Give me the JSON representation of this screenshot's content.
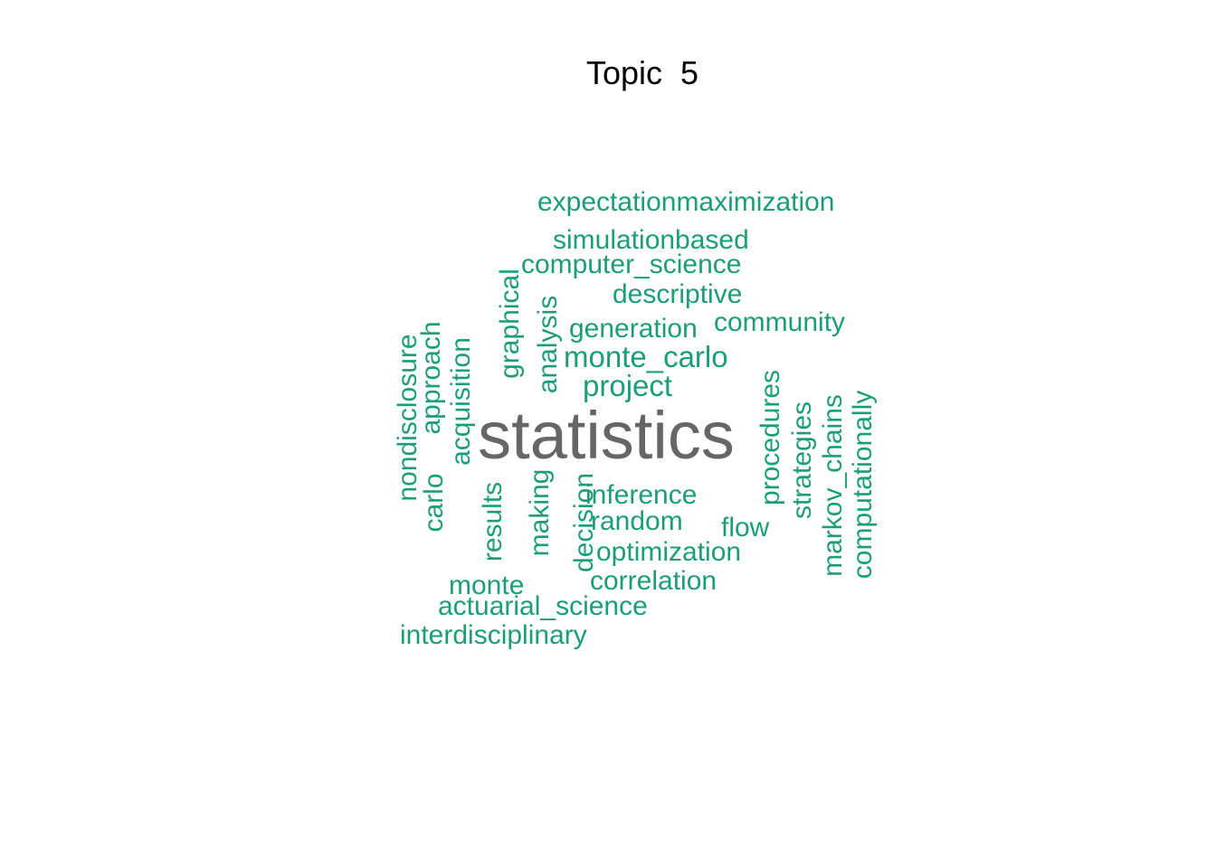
{
  "chart_data": {
    "type": "wordcloud",
    "title": "Topic  5",
    "colors": {
      "primary": "#666666",
      "secondary": "#1b9e77"
    },
    "words": [
      {
        "text": "statistics",
        "weight": 1.0,
        "color": "#666666",
        "rotated": false
      },
      {
        "text": "expectationmaximization",
        "weight": 0.42,
        "color": "#1b9e77",
        "rotated": false
      },
      {
        "text": "simulationbased",
        "weight": 0.42,
        "color": "#1b9e77",
        "rotated": false
      },
      {
        "text": "computer_science",
        "weight": 0.42,
        "color": "#1b9e77",
        "rotated": false
      },
      {
        "text": "descriptive",
        "weight": 0.42,
        "color": "#1b9e77",
        "rotated": false
      },
      {
        "text": "generation",
        "weight": 0.42,
        "color": "#1b9e77",
        "rotated": false
      },
      {
        "text": "community",
        "weight": 0.42,
        "color": "#1b9e77",
        "rotated": false
      },
      {
        "text": "monte_carlo",
        "weight": 0.46,
        "color": "#1b9e77",
        "rotated": false
      },
      {
        "text": "project",
        "weight": 0.46,
        "color": "#1b9e77",
        "rotated": false
      },
      {
        "text": "inference",
        "weight": 0.42,
        "color": "#1b9e77",
        "rotated": false
      },
      {
        "text": "random",
        "weight": 0.42,
        "color": "#1b9e77",
        "rotated": false
      },
      {
        "text": "flow",
        "weight": 0.42,
        "color": "#1b9e77",
        "rotated": false
      },
      {
        "text": "optimization",
        "weight": 0.42,
        "color": "#1b9e77",
        "rotated": false
      },
      {
        "text": "correlation",
        "weight": 0.42,
        "color": "#1b9e77",
        "rotated": false
      },
      {
        "text": "monte",
        "weight": 0.42,
        "color": "#1b9e77",
        "rotated": false
      },
      {
        "text": "actuarial_science",
        "weight": 0.42,
        "color": "#1b9e77",
        "rotated": false
      },
      {
        "text": "interdisciplinary",
        "weight": 0.42,
        "color": "#1b9e77",
        "rotated": false
      },
      {
        "text": "nondisclosure",
        "weight": 0.42,
        "color": "#1b9e77",
        "rotated": true
      },
      {
        "text": "approach",
        "weight": 0.42,
        "color": "#1b9e77",
        "rotated": true
      },
      {
        "text": "carlo",
        "weight": 0.42,
        "color": "#1b9e77",
        "rotated": true
      },
      {
        "text": "acquisition",
        "weight": 0.42,
        "color": "#1b9e77",
        "rotated": true
      },
      {
        "text": "graphical",
        "weight": 0.42,
        "color": "#1b9e77",
        "rotated": true
      },
      {
        "text": "analysis",
        "weight": 0.42,
        "color": "#1b9e77",
        "rotated": true
      },
      {
        "text": "results",
        "weight": 0.42,
        "color": "#1b9e77",
        "rotated": true
      },
      {
        "text": "making",
        "weight": 0.42,
        "color": "#1b9e77",
        "rotated": true
      },
      {
        "text": "decision",
        "weight": 0.42,
        "color": "#1b9e77",
        "rotated": true
      },
      {
        "text": "procedures",
        "weight": 0.42,
        "color": "#1b9e77",
        "rotated": true
      },
      {
        "text": "strategies",
        "weight": 0.42,
        "color": "#1b9e77",
        "rotated": true
      },
      {
        "text": "markov_chains",
        "weight": 0.42,
        "color": "#1b9e77",
        "rotated": true
      },
      {
        "text": "computationally",
        "weight": 0.42,
        "color": "#1b9e77",
        "rotated": true
      }
    ]
  }
}
